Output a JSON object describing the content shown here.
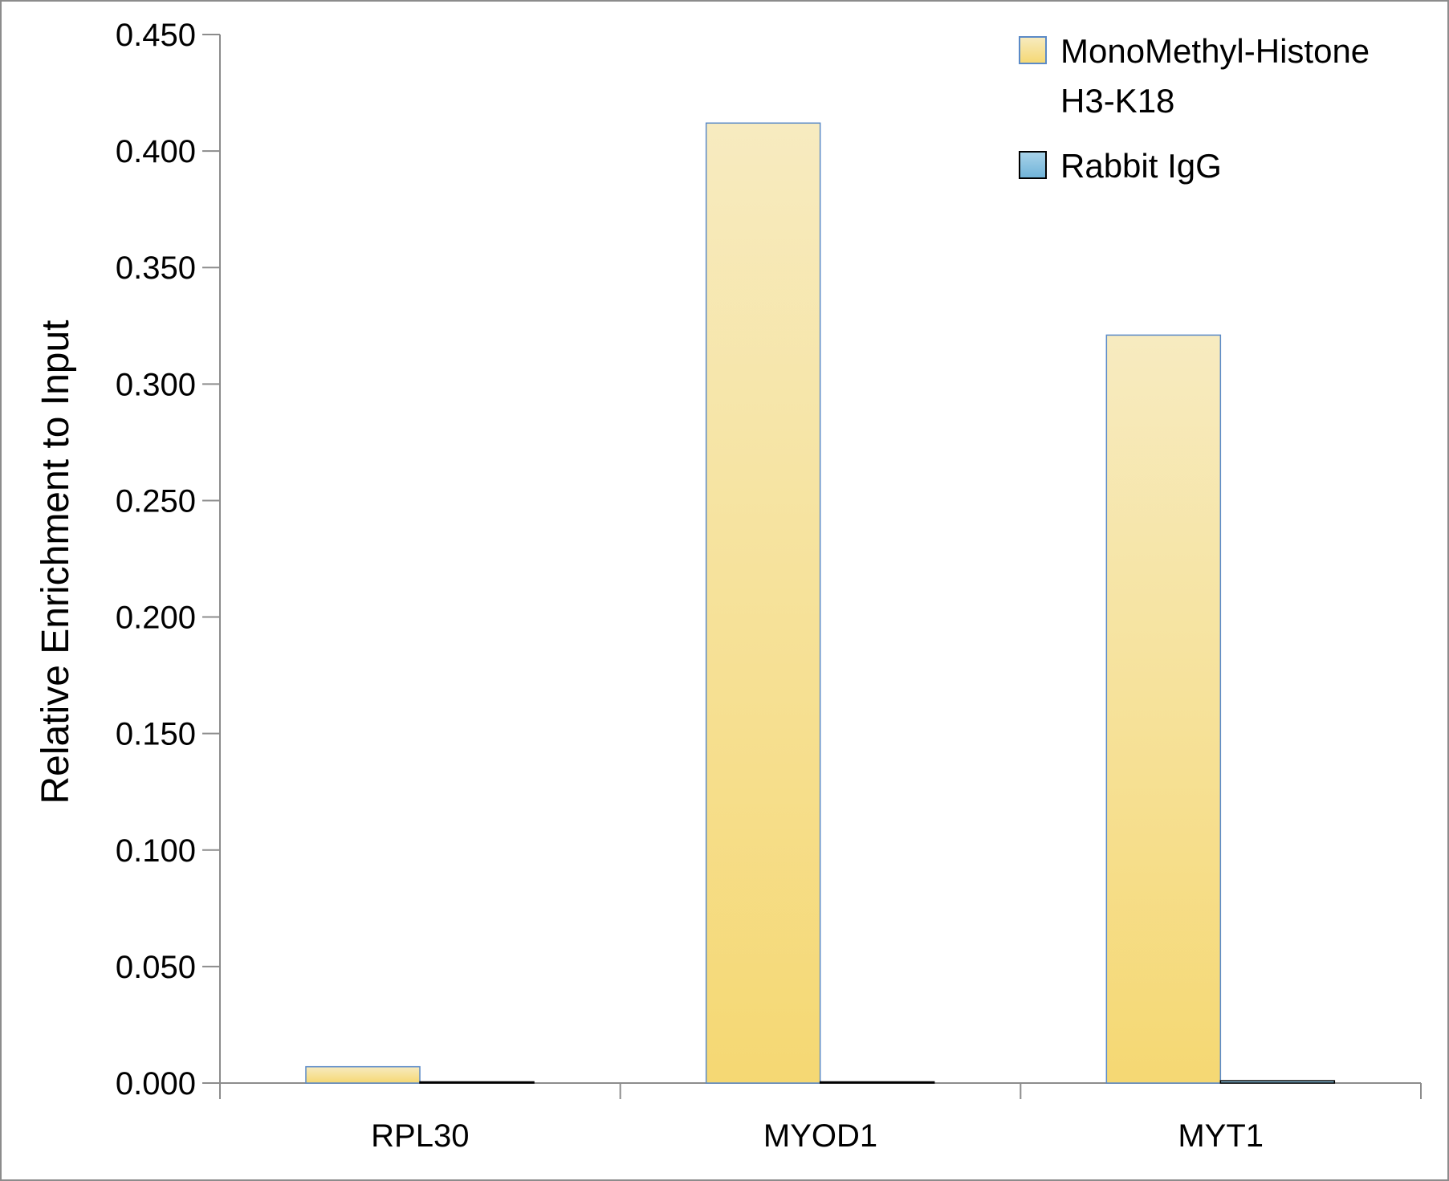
{
  "chart_data": {
    "type": "bar",
    "title": "",
    "xlabel": "",
    "ylabel": "Relative Enrichment to Input",
    "categories": [
      "RPL30",
      "MYOD1",
      "MYT1"
    ],
    "ylim": [
      0,
      0.45
    ],
    "yticks": [
      "0.000",
      "0.050",
      "0.100",
      "0.150",
      "0.200",
      "0.250",
      "0.300",
      "0.350",
      "0.400",
      "0.450"
    ],
    "grid": false,
    "legend_position": "top-right",
    "series": [
      {
        "name_lines": [
          "MonoMethyl-Histone",
          "H3-K18"
        ],
        "values": [
          0.007,
          0.412,
          0.321
        ],
        "color_light": "#f7ebc0",
        "color_dark": "#f5d873",
        "stroke": "#5b8ac7"
      },
      {
        "name_lines": [
          "Rabbit IgG"
        ],
        "values": [
          0.0005,
          0.0005,
          0.001
        ],
        "color_light": "#a9d4ea",
        "color_dark": "#6fb3d8",
        "stroke": "#000000"
      }
    ]
  }
}
